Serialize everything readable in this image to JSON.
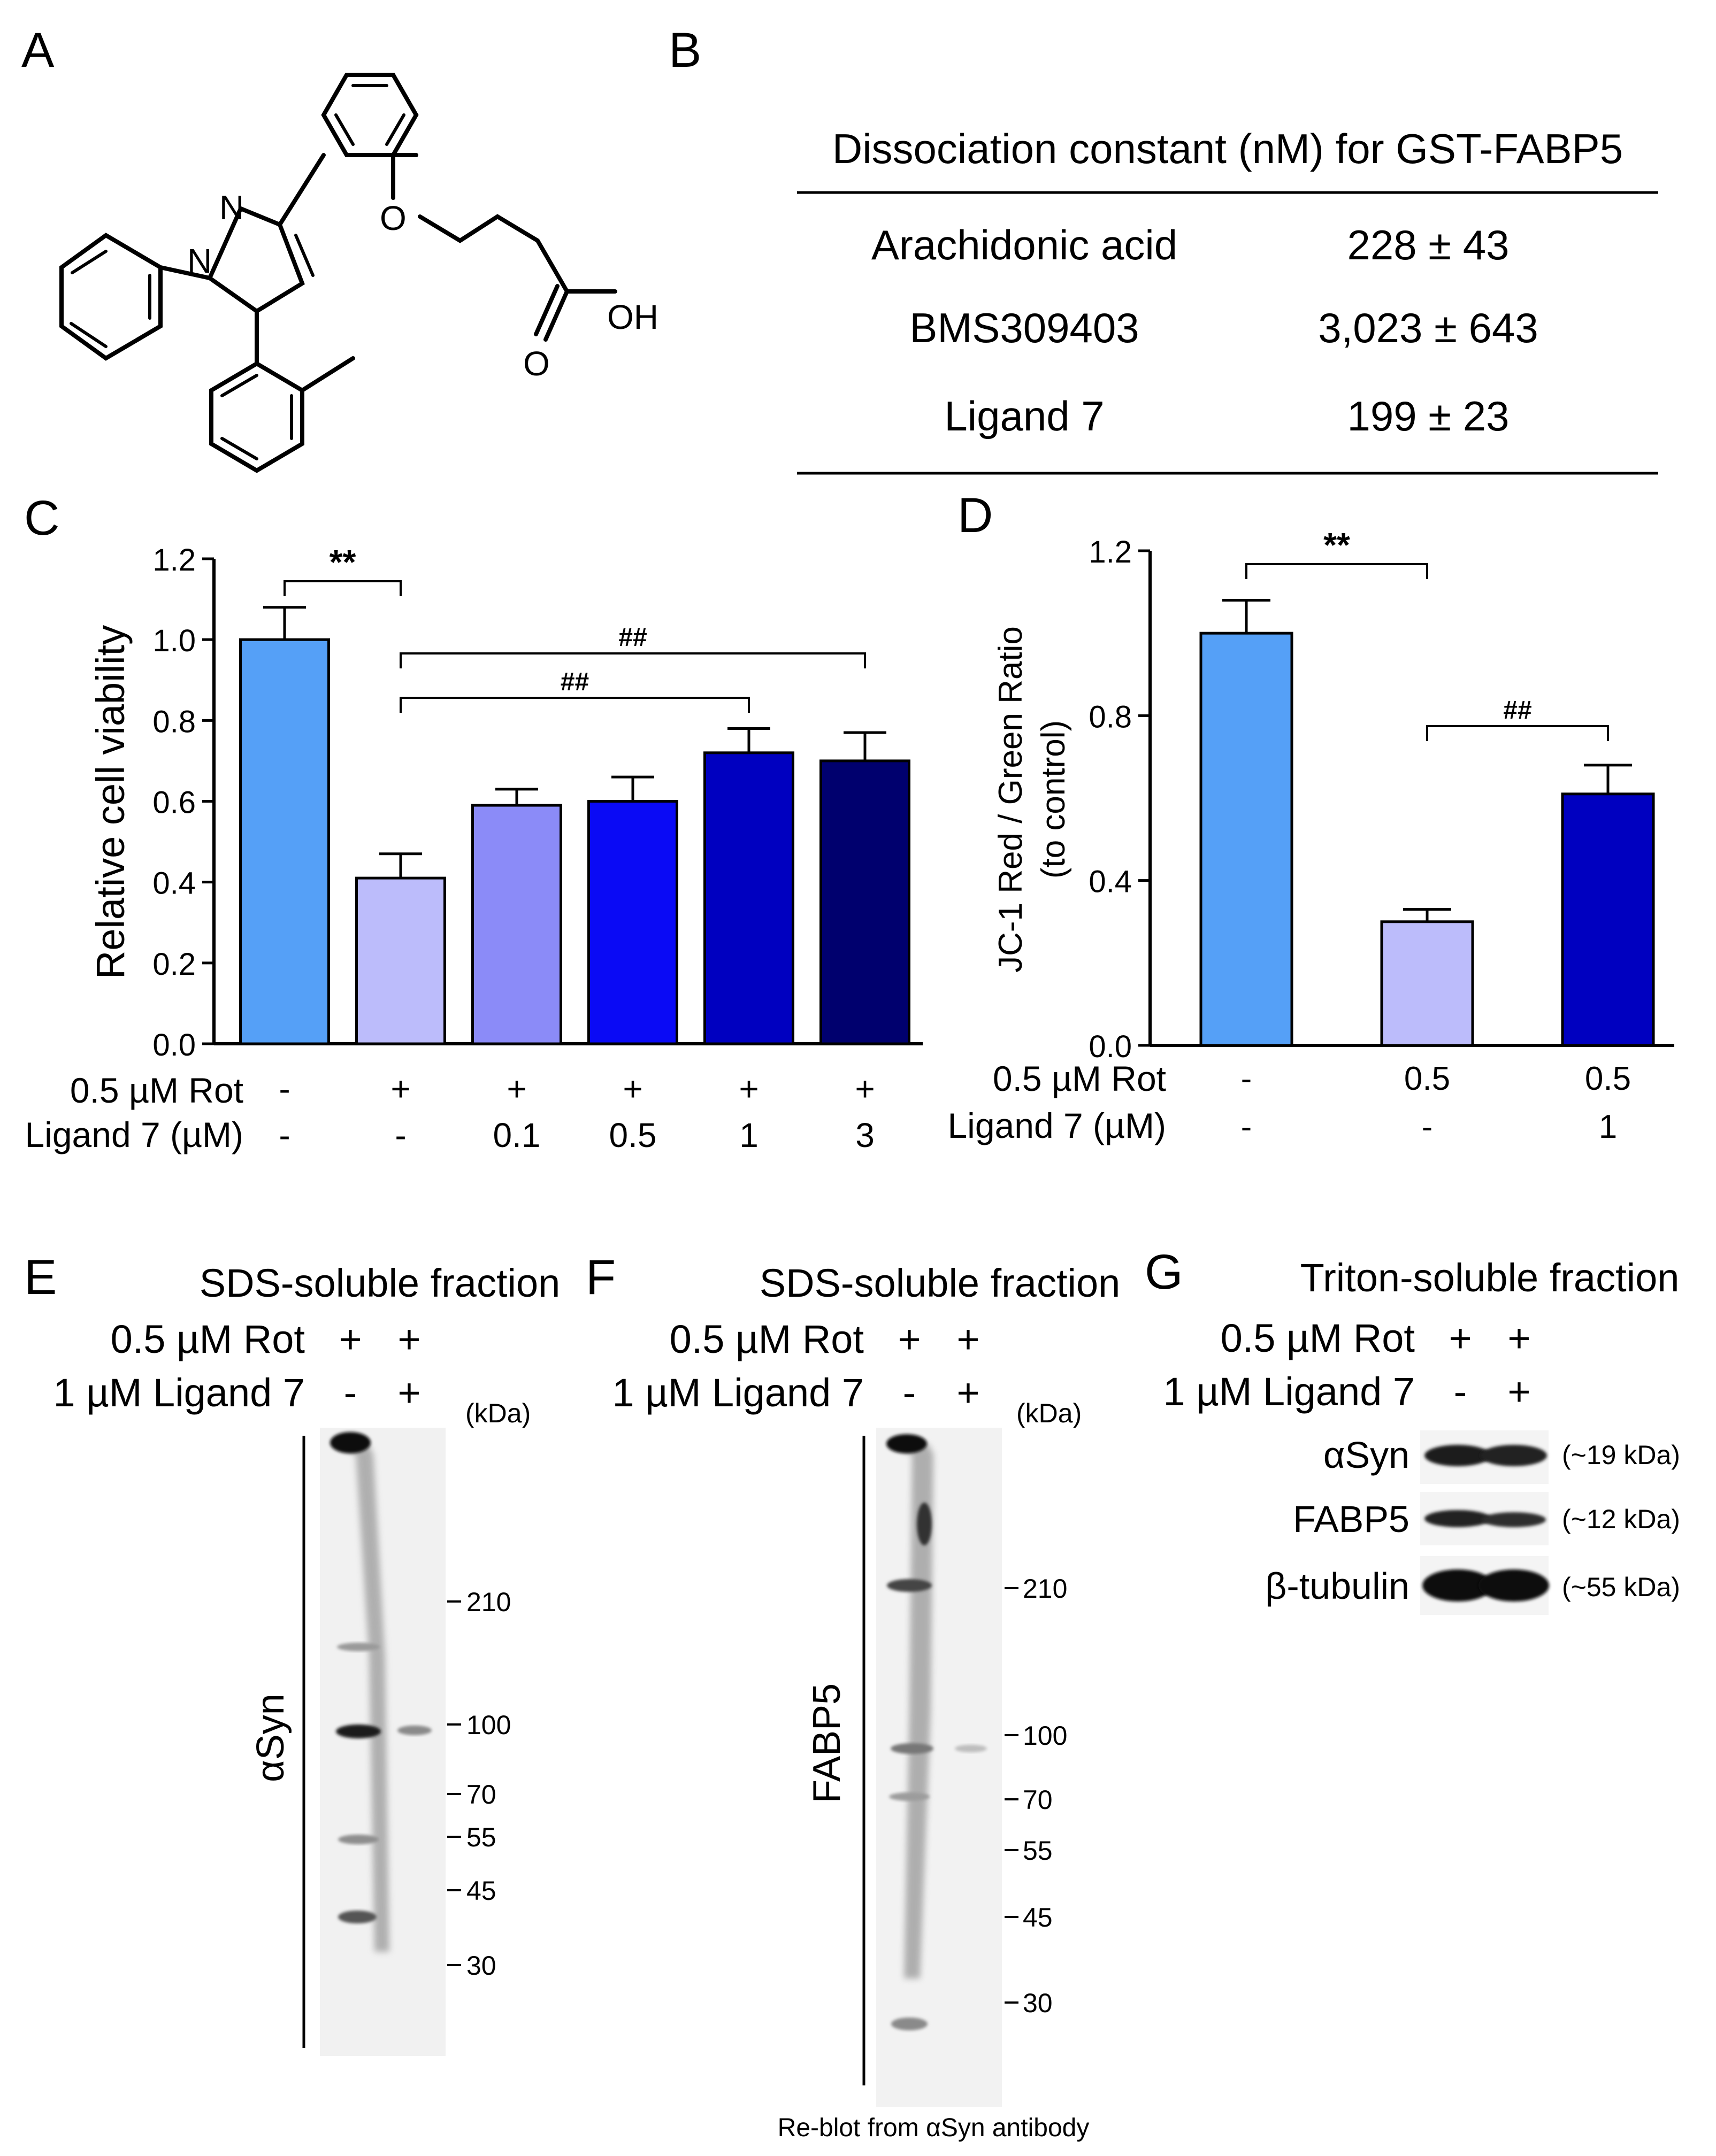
{
  "panels": {
    "A": "A",
    "B": "B",
    "C": "C",
    "D": "D",
    "E": "E",
    "F": "F",
    "G": "G"
  },
  "structure_A": {
    "atoms": [
      "N",
      "N",
      "O",
      "OH",
      "O"
    ]
  },
  "table_B": {
    "title": "Dissociation constant (nM) for GST-FABP5",
    "rows": [
      {
        "ligand": "Arachidonic acid",
        "value": "228 ± 43"
      },
      {
        "ligand": "BMS309403",
        "value": "3,023 ± 643"
      },
      {
        "ligand": "Ligand 7",
        "value": "199 ± 23"
      }
    ]
  },
  "chart_data": [
    {
      "panel": "C",
      "type": "bar",
      "ylabel": "Relative cell viability",
      "ylim": [
        0,
        1.2
      ],
      "yticks": [
        "0.0",
        "0.2",
        "0.4",
        "0.6",
        "0.8",
        "1.0",
        "1.2"
      ],
      "row_labels": [
        "0.5 µM Rot",
        "Ligand 7 (µM)"
      ],
      "rot_row": [
        "-",
        "+",
        "+",
        "+",
        "+",
        "+"
      ],
      "ligand_row": [
        "-",
        "-",
        "0.1",
        "0.5",
        "1",
        "3"
      ],
      "values": [
        1.0,
        0.41,
        0.59,
        0.6,
        0.72,
        0.7
      ],
      "errors": [
        0.08,
        0.06,
        0.04,
        0.06,
        0.06,
        0.07
      ],
      "colors": [
        "#55a0f7",
        "#bcbcfb",
        "#8b8bf8",
        "#0a0af5",
        "#0000c0",
        "#00006e"
      ],
      "significance": [
        {
          "from": 0,
          "to": 1,
          "label": "**"
        },
        {
          "from": 1,
          "to": 4,
          "label": "##"
        },
        {
          "from": 1,
          "to": 5,
          "label": "##"
        }
      ]
    },
    {
      "panel": "D",
      "type": "bar",
      "ylabel": "JC-1 Red / Green Ratio",
      "ylabel2": "(to control)",
      "ylim": [
        0,
        1.2
      ],
      "yticks": [
        "0.0",
        "0.4",
        "0.8",
        "1.2"
      ],
      "row_labels": [
        "0.5 µM Rot",
        "Ligand 7 (µM)"
      ],
      "rot_row": [
        "-",
        "0.5",
        "0.5"
      ],
      "ligand_row": [
        "-",
        "-",
        "1"
      ],
      "values": [
        1.0,
        0.3,
        0.61
      ],
      "errors": [
        0.08,
        0.03,
        0.07
      ],
      "colors": [
        "#55a0f7",
        "#bcbcfb",
        "#0000c0"
      ],
      "significance": [
        {
          "from": 0,
          "to": 1,
          "label": "**"
        },
        {
          "from": 1,
          "to": 2,
          "label": "##"
        }
      ]
    }
  ],
  "blot_E": {
    "title": "SDS-soluble fraction",
    "rot_label": "0.5 µM Rot",
    "rot": [
      "+",
      "+"
    ],
    "lig_label": "1 µM Ligand 7",
    "lig": [
      "-",
      "+"
    ],
    "kda": "(kDa)",
    "antibody": "αSyn",
    "markers": [
      "210",
      "100",
      "70",
      "55",
      "45",
      "30"
    ]
  },
  "blot_F": {
    "title": "SDS-soluble fraction",
    "rot_label": "0.5 µM Rot",
    "rot": [
      "+",
      "+"
    ],
    "lig_label": "1 µM Ligand 7",
    "lig": [
      "-",
      "+"
    ],
    "kda": "(kDa)",
    "antibody": "FABP5",
    "markers": [
      "210",
      "100",
      "70",
      "55",
      "45",
      "30"
    ],
    "footnote": "Re-blot from αSyn antibody"
  },
  "blot_G": {
    "title": "Triton-soluble fraction",
    "rot_label": "0.5 µM Rot",
    "rot": [
      "+",
      "+"
    ],
    "lig_label": "1 µM Ligand 7",
    "lig": [
      "-",
      "+"
    ],
    "rows": [
      {
        "name": "αSyn",
        "size": "(~19 kDa)"
      },
      {
        "name": "FABP5",
        "size": "(~12 kDa)"
      },
      {
        "name": "β-tubulin",
        "size": "(~55 kDa)"
      }
    ]
  }
}
